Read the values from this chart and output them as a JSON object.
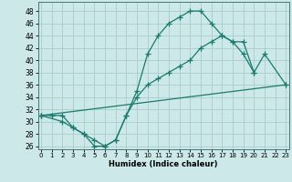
{
  "xlabel": "Humidex (Indice chaleur)",
  "bg_color": "#cce8e8",
  "grid_color": "#aacccc",
  "line_color": "#1a7a6e",
  "line1_pts": [
    [
      0,
      31
    ],
    [
      1,
      31
    ],
    [
      2,
      31
    ],
    [
      3,
      29
    ],
    [
      4,
      28
    ],
    [
      5,
      26
    ],
    [
      6,
      26
    ],
    [
      7,
      27
    ],
    [
      8,
      31
    ],
    [
      9,
      35
    ],
    [
      10,
      41
    ],
    [
      11,
      44
    ],
    [
      12,
      46
    ],
    [
      13,
      47
    ],
    [
      14,
      48
    ],
    [
      15,
      48
    ],
    [
      16,
      46
    ],
    [
      17,
      44
    ],
    [
      18,
      43
    ],
    [
      19,
      41
    ],
    [
      20,
      38
    ]
  ],
  "line2_pts": [
    [
      0,
      31
    ],
    [
      23,
      36
    ]
  ],
  "line3_pts": [
    [
      0,
      31
    ],
    [
      2,
      30
    ],
    [
      3,
      29
    ],
    [
      4,
      28
    ],
    [
      5,
      27
    ],
    [
      6,
      26
    ],
    [
      7,
      27
    ],
    [
      8,
      31
    ],
    [
      9,
      34
    ],
    [
      10,
      36
    ],
    [
      11,
      37
    ],
    [
      12,
      38
    ],
    [
      13,
      39
    ],
    [
      14,
      40
    ],
    [
      15,
      42
    ],
    [
      16,
      43
    ],
    [
      17,
      44
    ],
    [
      18,
      43
    ],
    [
      19,
      43
    ],
    [
      20,
      38
    ],
    [
      21,
      41
    ],
    [
      23,
      36
    ]
  ],
  "xlim": [
    -0.3,
    23.3
  ],
  "ylim": [
    25.5,
    49.5
  ],
  "yticks": [
    26,
    28,
    30,
    32,
    34,
    36,
    38,
    40,
    42,
    44,
    46,
    48
  ],
  "xticks": [
    0,
    1,
    2,
    3,
    4,
    5,
    6,
    7,
    8,
    9,
    10,
    11,
    12,
    13,
    14,
    15,
    16,
    17,
    18,
    19,
    20,
    21,
    22,
    23
  ]
}
